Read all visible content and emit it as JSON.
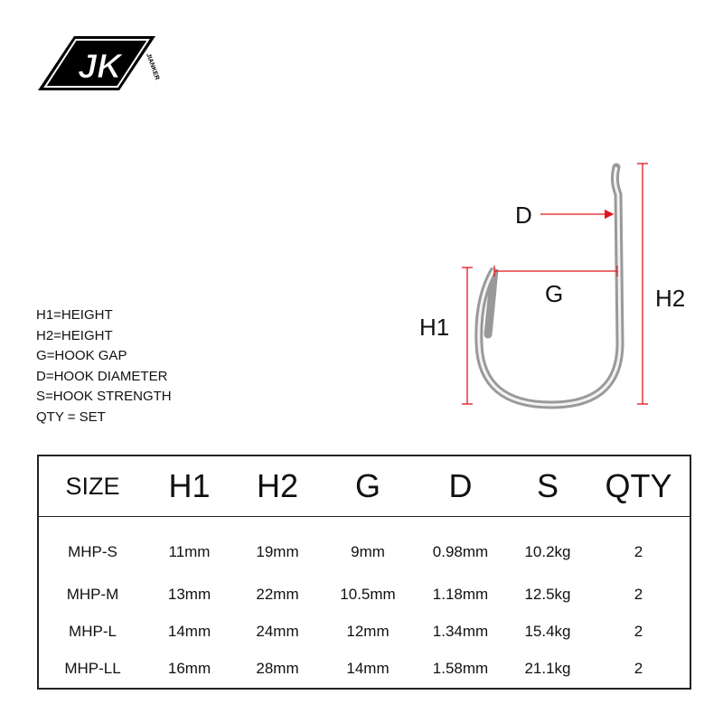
{
  "brand": {
    "logo_text": "JK",
    "logo_subtext": "JIANKER"
  },
  "legend": [
    "H1=HEIGHT",
    "H2=HEIGHT",
    "G=HOOK GAP",
    "D=HOOK DIAMETER",
    "S=HOOK STRENGTH",
    "QTY = SET"
  ],
  "diagram": {
    "labels": {
      "d": "D",
      "g": "G",
      "h1": "H1",
      "h2": "H2"
    },
    "dimension_color": "#e0151b"
  },
  "table": {
    "headers": [
      "SIZE",
      "H1",
      "H2",
      "G",
      "D",
      "S",
      "QTY"
    ],
    "rows": [
      [
        "MHP-S",
        "11mm",
        "19mm",
        "9mm",
        "0.98mm",
        "10.2kg",
        "2"
      ],
      [
        "MHP-M",
        "13mm",
        "22mm",
        "10.5mm",
        "1.18mm",
        "12.5kg",
        "2"
      ],
      [
        "MHP-L",
        "14mm",
        "24mm",
        "12mm",
        "1.34mm",
        "15.4kg",
        "2"
      ],
      [
        "MHP-LL",
        "16mm",
        "28mm",
        "14mm",
        "1.58mm",
        "21.1kg",
        "2"
      ]
    ]
  }
}
